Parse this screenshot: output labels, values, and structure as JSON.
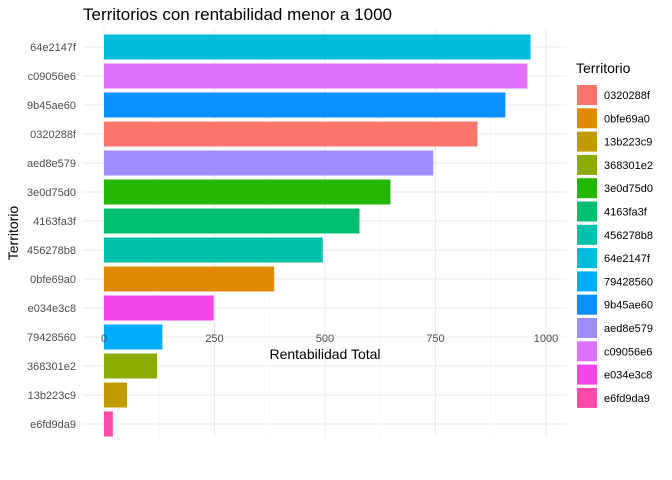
{
  "chart_data": {
    "type": "bar",
    "orientation": "horizontal",
    "title": "Territorios con rentabilidad menor a 1000",
    "xlabel": "Rentabilidad Total",
    "ylabel": "Territorio",
    "xlim": [
      0,
      1000
    ],
    "xticks": [
      0,
      250,
      500,
      750,
      1000
    ],
    "grid": true,
    "legend": {
      "title": "Territorio",
      "placement": "right",
      "entries": [
        {
          "label": "0320288f",
          "color": "#F8766D"
        },
        {
          "label": "0bfe69a0",
          "color": "#E18A00"
        },
        {
          "label": "13b223c9",
          "color": "#BE9C00"
        },
        {
          "label": "368301e2",
          "color": "#8CAB00"
        },
        {
          "label": "3e0d75d0",
          "color": "#24B700"
        },
        {
          "label": "4163fa3f",
          "color": "#00BE70"
        },
        {
          "label": "456278b8",
          "color": "#00C1AB"
        },
        {
          "label": "64e2147f",
          "color": "#00BBDA"
        },
        {
          "label": "79428560",
          "color": "#00ACFC"
        },
        {
          "label": "9b45ae60",
          "color": "#0A8FFF"
        },
        {
          "label": "aed8e579",
          "color": "#9F8CFF"
        },
        {
          "label": "c09056e6",
          "color": "#DD71FA"
        },
        {
          "label": "e034e3c8",
          "color": "#F445E6"
        },
        {
          "label": "e6fd9da9",
          "color": "#FF4AA8"
        }
      ]
    },
    "categories": [
      "64e2147f",
      "c09056e6",
      "9b45ae60",
      "0320288f",
      "aed8e579",
      "3e0d75d0",
      "4163fa3f",
      "456278b8",
      "0bfe69a0",
      "e034e3c8",
      "79428560",
      "368301e2",
      "13b223c9",
      "e6fd9da9"
    ],
    "values": [
      965,
      958,
      908,
      845,
      745,
      648,
      578,
      495,
      385,
      248,
      132,
      120,
      52,
      20
    ],
    "colors": [
      "#00BBDA",
      "#DD71FA",
      "#0A8FFF",
      "#F8766D",
      "#9F8CFF",
      "#24B700",
      "#00BE70",
      "#00C1AB",
      "#E18A00",
      "#F445E6",
      "#00ACFC",
      "#8CAB00",
      "#BE9C00",
      "#FF4AA8"
    ]
  }
}
